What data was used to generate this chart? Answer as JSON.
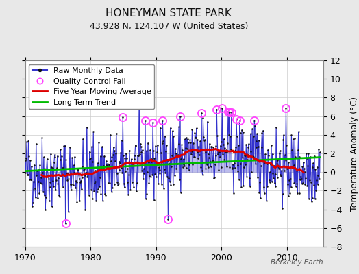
{
  "title": "HONEYMAN STATE PARK",
  "subtitle": "43.928 N, 124.107 W (United States)",
  "ylabel": "Temperature Anomaly (°C)",
  "credit": "Berkeley Earth",
  "background_color": "#e8e8e8",
  "plot_background": "#ffffff",
  "ylim": [
    -8,
    12
  ],
  "yticks": [
    -8,
    -6,
    -4,
    -2,
    0,
    2,
    4,
    6,
    8,
    10,
    12
  ],
  "xlim": [
    1970,
    2015.5
  ],
  "xticks": [
    1970,
    1980,
    1990,
    2000,
    2010
  ],
  "raw_color": "#3333cc",
  "stem_color": "#8888dd",
  "moving_avg_color": "#dd0000",
  "trend_color": "#00bb00",
  "qc_fail_color": "#ff44ff",
  "title_fontsize": 11,
  "subtitle_fontsize": 9,
  "axis_fontsize": 9,
  "legend_fontsize": 8
}
